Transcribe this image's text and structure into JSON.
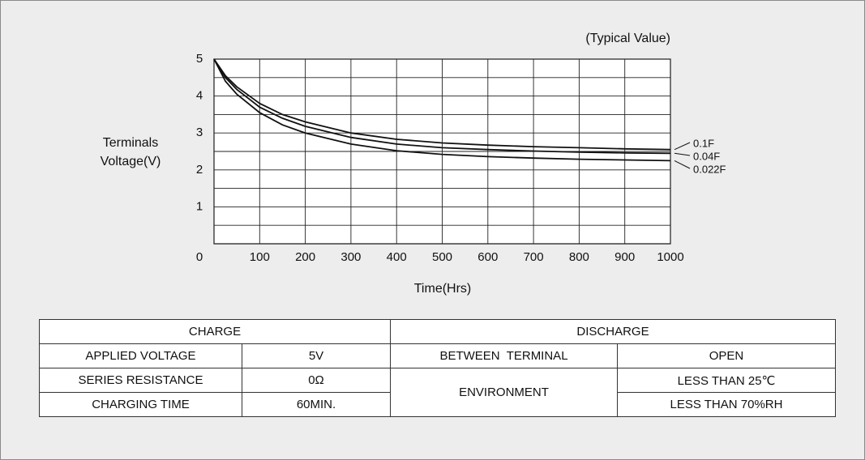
{
  "chart_data": {
    "type": "line",
    "title": "(Typical Value)",
    "ylabel": [
      "Terminals",
      "Voltage(V)"
    ],
    "xlabel": "Time(Hrs)",
    "x": [
      0,
      25,
      50,
      100,
      150,
      200,
      300,
      400,
      500,
      600,
      700,
      800,
      900,
      1000
    ],
    "series": [
      {
        "name": "0.1F",
        "color": "#111111",
        "values": [
          5,
          4.55,
          4.25,
          3.8,
          3.5,
          3.3,
          3.0,
          2.83,
          2.73,
          2.67,
          2.63,
          2.6,
          2.57,
          2.55
        ]
      },
      {
        "name": "0.04F",
        "color": "#111111",
        "values": [
          5,
          4.5,
          4.18,
          3.7,
          3.4,
          3.18,
          2.88,
          2.7,
          2.6,
          2.55,
          2.51,
          2.48,
          2.46,
          2.45
        ]
      },
      {
        "name": "0.022F",
        "color": "#111111",
        "values": [
          5,
          4.4,
          4.05,
          3.55,
          3.22,
          3.0,
          2.7,
          2.52,
          2.42,
          2.36,
          2.32,
          2.29,
          2.27,
          2.25
        ]
      }
    ],
    "xlim": [
      0,
      1000
    ],
    "xticks": [
      0,
      100,
      200,
      300,
      400,
      500,
      600,
      700,
      800,
      900,
      1000
    ],
    "ylim": [
      0,
      5
    ],
    "yticks": [
      1,
      2,
      3,
      4,
      5
    ],
    "grid": true
  },
  "table": {
    "charge": "CHARGE",
    "discharge": "DISCHARGE",
    "charge_rows": [
      [
        "APPLIED VOLTAGE",
        "5V"
      ],
      [
        "SERIES RESISTANCE",
        "0Ω"
      ],
      [
        "CHARGING TIME",
        "60MIN."
      ]
    ],
    "between": [
      "BETWEEN  TERMINAL",
      "OPEN"
    ],
    "environment": "ENVIRONMENT",
    "environment_values": [
      "LESS THAN 25℃",
      "LESS THAN 70%RH"
    ]
  }
}
